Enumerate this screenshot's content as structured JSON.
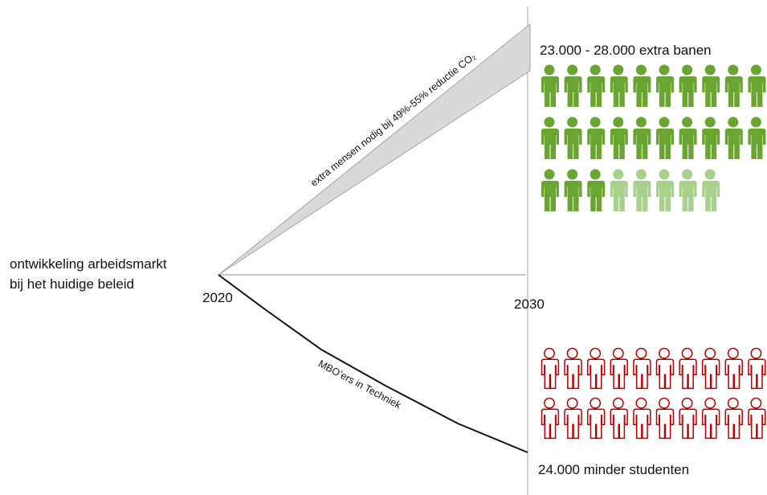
{
  "left_label": {
    "lines": [
      "ontwikkeling arbeidsmarkt",
      "bij het huidige beleid"
    ]
  },
  "axis": {
    "start": "2020",
    "end": "2030"
  },
  "upper_band": {
    "label": "extra mensen nodig bij 49%-55% reductie CO₂"
  },
  "lower_line": {
    "label": "MBO’ers in Techniek"
  },
  "gain_caption": "23.000 - 28.000 extra banen",
  "loss_caption": "24.000 minder studenten"
}
